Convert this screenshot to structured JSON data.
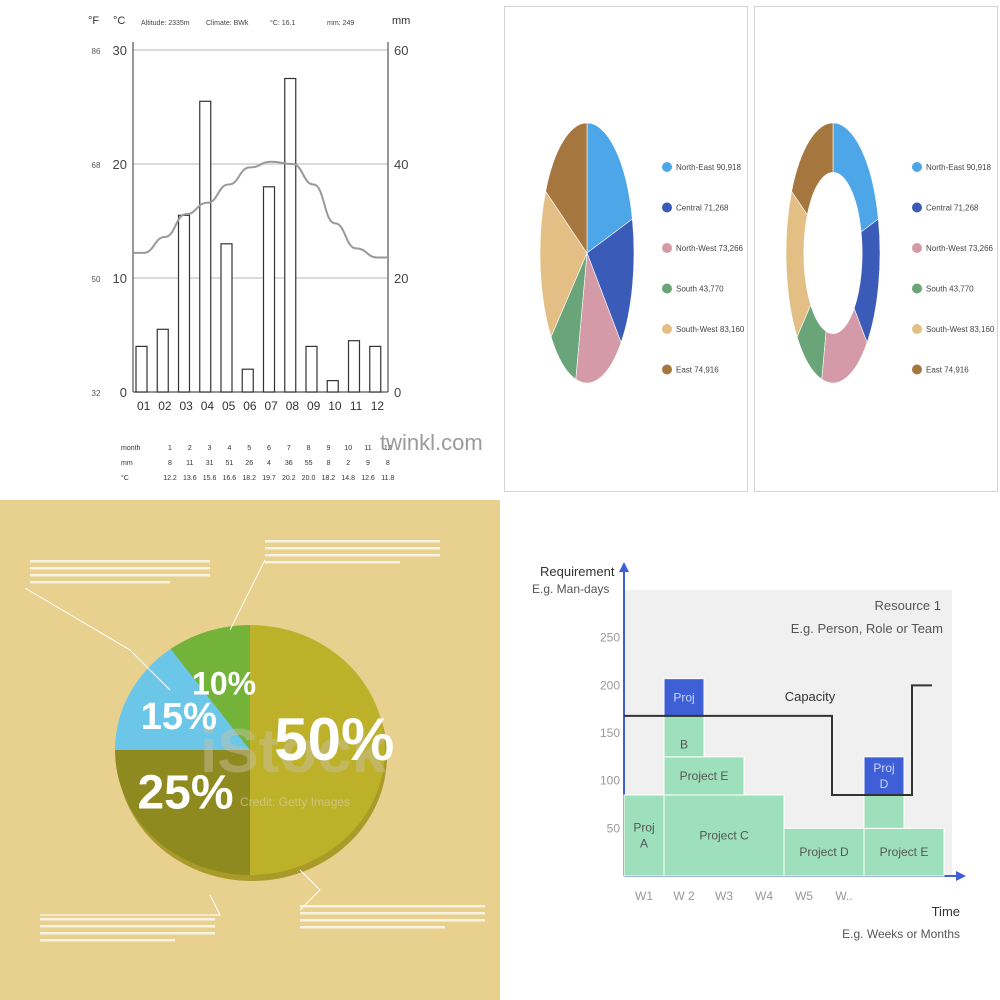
{
  "chart_data": [
    {
      "type": "bar",
      "title": "",
      "header": {
        "altitude": "Altitude: 2335m",
        "climate": "Climate: BWk",
        "temp": "°C: 16.1",
        "rain": "mm: 249"
      },
      "left_unit_f": "°F",
      "left_unit_c": "°C",
      "right_unit": "mm",
      "categories": [
        "01",
        "02",
        "03",
        "04",
        "05",
        "06",
        "07",
        "08",
        "09",
        "10",
        "11",
        "12"
      ],
      "series": [
        {
          "values": [
            8,
            11,
            31,
            51,
            26,
            4,
            36,
            55,
            8,
            2,
            9,
            8
          ]
        },
        {
          "values": [
            12.2,
            13.6,
            15.6,
            16.6,
            18.2,
            19.7,
            20.2,
            20.0,
            18.2,
            14.8,
            12.6,
            11.8
          ]
        }
      ],
      "ylim_c": [
        0,
        30
      ],
      "ylim_mm": [
        0,
        60
      ],
      "c_ticks": [
        "0",
        "10",
        "20",
        "30"
      ],
      "f_ticks": [
        "32",
        "50",
        "68",
        "86"
      ],
      "mm_ticks": [
        "0",
        "20",
        "40",
        "60"
      ],
      "watermark": "twinkl.com",
      "table": {
        "row_labels": [
          "month",
          "mm",
          "°C"
        ],
        "months": [
          "1",
          "2",
          "3",
          "4",
          "5",
          "6",
          "7",
          "8",
          "9",
          "10",
          "11",
          "12"
        ],
        "mm": [
          "8",
          "11",
          "31",
          "51",
          "26",
          "4",
          "36",
          "55",
          "8",
          "2",
          "9",
          "8"
        ],
        "c": [
          "12.2",
          "13.6",
          "15.6",
          "16.6",
          "18.2",
          "19.7",
          "20.2",
          "20.0",
          "18.2",
          "14.8",
          "12.6",
          "11.8"
        ]
      },
      "grid": true
    },
    {
      "type": "pie",
      "slices": [
        {
          "label": "North-East 90,918",
          "value": 90918,
          "color": "#4da6e8"
        },
        {
          "label": "Central 71,268",
          "value": 71268,
          "color": "#3a5bb8"
        },
        {
          "label": "North-West 73,266",
          "value": 73266,
          "color": "#d49aa8"
        },
        {
          "label": "South 43,770",
          "value": 43770,
          "color": "#6aa57a"
        },
        {
          "label": "South-West 83,160",
          "value": 83160,
          "color": "#e3bf86"
        },
        {
          "label": "East 74,916",
          "value": 74916,
          "color": "#a5773f"
        }
      ],
      "legend": "right"
    },
    {
      "type": "pie",
      "donut": true,
      "slices": [
        {
          "label": "North-East 90,918",
          "value": 90918,
          "color": "#4da6e8"
        },
        {
          "label": "Central 71,268",
          "value": 71268,
          "color": "#3a5bb8"
        },
        {
          "label": "North-West 73,266",
          "value": 73266,
          "color": "#d49aa8"
        },
        {
          "label": "South 43,770",
          "value": 43770,
          "color": "#6aa57a"
        },
        {
          "label": "South-West 83,160",
          "value": 83160,
          "color": "#e3bf86"
        },
        {
          "label": "East 74,916",
          "value": 74916,
          "color": "#a5773f"
        }
      ],
      "legend": "right"
    },
    {
      "type": "pie",
      "slices": [
        {
          "label": "50%",
          "value": 50,
          "color": "#bdb12a"
        },
        {
          "label": "25%",
          "value": 25,
          "color": "#8f8a1f"
        },
        {
          "label": "15%",
          "value": 15,
          "color": "#6cc6e8"
        },
        {
          "label": "10%",
          "value": 10,
          "color": "#73b33a"
        }
      ],
      "background": "#e8d08e",
      "watermark": "iStock",
      "watermark_sub": "Credit: Getty Images"
    },
    {
      "type": "bar",
      "stacked": true,
      "ylabel": "Requirement",
      "ylabel_sub": "E.g. Man-days",
      "xlabel": "Time",
      "xlabel_sub": "E.g. Weeks or Months",
      "resource_label": "Resource 1",
      "resource_sub": "E.g. Person, Role or Team",
      "capacity_label": "Capacity",
      "categories": [
        "W1",
        "W 2",
        "W3",
        "W4",
        "W5",
        "W.."
      ],
      "y_ticks": [
        "50",
        "100",
        "150",
        "200",
        "250"
      ],
      "ylim": [
        0,
        300
      ],
      "bar_color": "#9ee0bb",
      "overflow_color": "#3e5fd6",
      "blocks": [
        {
          "label": [
            "Proj",
            "A"
          ],
          "x0": 0,
          "x1": 1,
          "y0": 0,
          "y1": 85,
          "kind": "normal"
        },
        {
          "label": [
            "Project C"
          ],
          "x0": 1,
          "x1": 4,
          "y0": 0,
          "y1": 85,
          "kind": "normal"
        },
        {
          "label": [
            "Project E"
          ],
          "x0": 1,
          "x1": 3,
          "y0": 85,
          "y1": 125,
          "kind": "normal"
        },
        {
          "label": [
            "",
            "B"
          ],
          "x0": 1,
          "x1": 2,
          "y0": 125,
          "y1": 168,
          "kind": "normal"
        },
        {
          "label": [
            "Proj"
          ],
          "x0": 1,
          "x1": 2,
          "y0": 168,
          "y1": 207,
          "kind": "over"
        },
        {
          "label": [
            "Project D"
          ],
          "x0": 4,
          "x1": 6,
          "y0": 0,
          "y1": 50,
          "kind": "normal"
        },
        {
          "label": [
            "Project E"
          ],
          "x0": 6,
          "x1": 8,
          "y0": 0,
          "y1": 50,
          "kind": "normal"
        },
        {
          "label": [
            ""
          ],
          "x0": 6,
          "x1": 7,
          "y0": 50,
          "y1": 85,
          "kind": "normal"
        },
        {
          "label": [
            "Proj",
            "D"
          ],
          "x0": 6,
          "x1": 7,
          "y0": 85,
          "y1": 125,
          "kind": "over"
        }
      ],
      "capacity": [
        [
          0,
          168
        ],
        [
          5.2,
          168
        ],
        [
          5.2,
          85
        ],
        [
          7.2,
          85
        ],
        [
          7.2,
          200
        ],
        [
          7.7,
          200
        ]
      ],
      "x_range": [
        0,
        8.2
      ]
    }
  ]
}
